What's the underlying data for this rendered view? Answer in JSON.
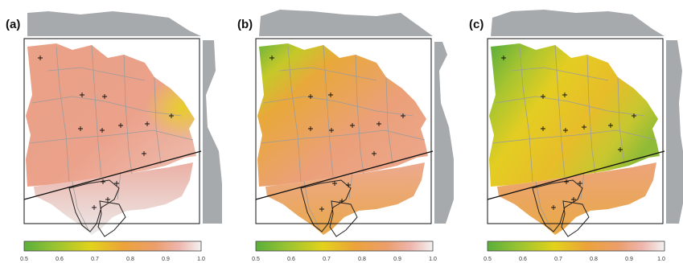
{
  "panels": [
    {
      "label": "(a)"
    },
    {
      "label": "(b)"
    },
    {
      "label": "(c)"
    }
  ],
  "colorbar": {
    "ticks": [
      "0.5",
      "0.6",
      "0.7",
      "0.8",
      "0.9",
      "1.0"
    ],
    "stops": [
      "#5aaf3c",
      "#9bc431",
      "#e3d21b",
      "#eca33a",
      "#ec9e6c",
      "#eeb7b0",
      "#f2f2f2"
    ]
  },
  "colors": {
    "projection_fill": "#a7aaad",
    "outline": "#111111",
    "marker": "#111111"
  }
}
